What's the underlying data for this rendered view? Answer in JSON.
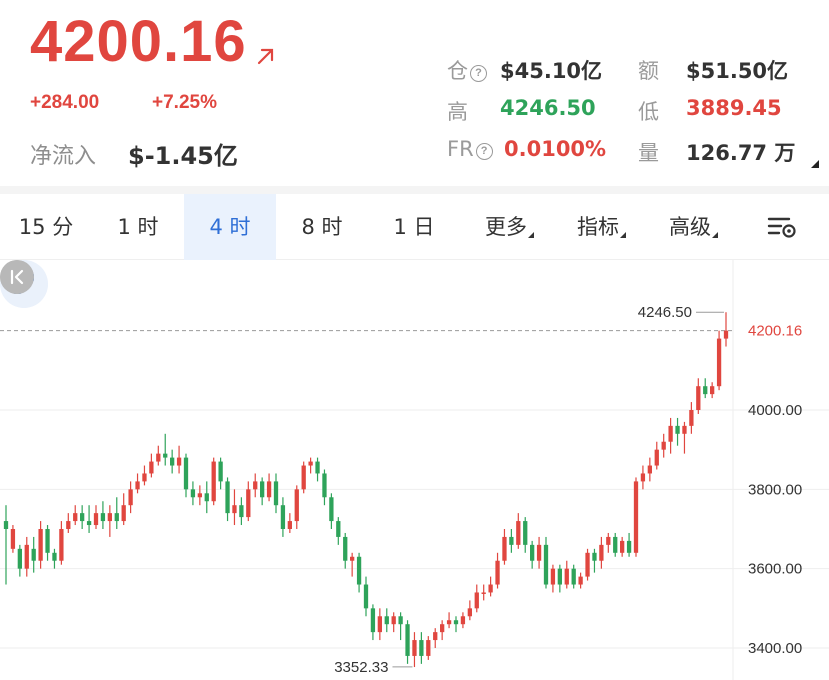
{
  "header": {
    "price": "4200.16",
    "change_abs": "+284.00",
    "change_pct": "+7.25%",
    "net_inflow_label": "净流入",
    "net_inflow_value": "$-1.45亿",
    "stats": {
      "open_interest_label": "仓",
      "open_interest_value": "$45.10亿",
      "turnover_label": "额",
      "turnover_value": "$51.50亿",
      "high_label": "高",
      "high_value": "4246.50",
      "low_label": "低",
      "low_value": "3889.45",
      "fr_label": "FR",
      "fr_value": "0.0100%",
      "volume_label": "量",
      "volume_value": "126.77 万"
    }
  },
  "tabs": {
    "items": [
      "15 分",
      "1 时",
      "4 时",
      "8 时",
      "1 日",
      "更多",
      "指标",
      "高级"
    ],
    "active": "4 时"
  },
  "colors": {
    "up": "#e0463f",
    "down": "#2ea35a",
    "accent": "#2f6fd6"
  },
  "chart_data": {
    "type": "candlestick",
    "y_ticks": [
      "4000.00",
      "3800.00",
      "3600.00",
      "3400.00"
    ],
    "y_tick_values": [
      4000,
      3800,
      3600,
      3400
    ],
    "ylim": [
      3365,
      4300
    ],
    "current_price_label": "4200.16",
    "current_price": 4200.16,
    "max_label": "4246.50",
    "max_value": 4246.5,
    "min_label": "3352.33",
    "min_value": 3352.33,
    "grid": true,
    "candles": [
      [
        3720,
        3700,
        3760,
        3560
      ],
      [
        3650,
        3700,
        3710,
        3640
      ],
      [
        3650,
        3600,
        3660,
        3580
      ],
      [
        3600,
        3660,
        3680,
        3580
      ],
      [
        3650,
        3620,
        3680,
        3590
      ],
      [
        3620,
        3700,
        3720,
        3600
      ],
      [
        3700,
        3640,
        3710,
        3620
      ],
      [
        3640,
        3620,
        3650,
        3600
      ],
      [
        3620,
        3700,
        3720,
        3610
      ],
      [
        3700,
        3720,
        3740,
        3690
      ],
      [
        3720,
        3740,
        3760,
        3710
      ],
      [
        3740,
        3720,
        3760,
        3700
      ],
      [
        3720,
        3710,
        3760,
        3690
      ],
      [
        3710,
        3740,
        3760,
        3700
      ],
      [
        3740,
        3720,
        3770,
        3700
      ],
      [
        3720,
        3740,
        3760,
        3680
      ],
      [
        3740,
        3720,
        3780,
        3700
      ],
      [
        3720,
        3760,
        3790,
        3710
      ],
      [
        3760,
        3800,
        3820,
        3740
      ],
      [
        3800,
        3820,
        3840,
        3790
      ],
      [
        3820,
        3840,
        3860,
        3810
      ],
      [
        3840,
        3870,
        3890,
        3830
      ],
      [
        3870,
        3890,
        3910,
        3860
      ],
      [
        3890,
        3880,
        3940,
        3860
      ],
      [
        3880,
        3860,
        3900,
        3840
      ],
      [
        3860,
        3880,
        3910,
        3840
      ],
      [
        3880,
        3800,
        3890,
        3780
      ],
      [
        3800,
        3780,
        3820,
        3760
      ],
      [
        3780,
        3790,
        3810,
        3760
      ],
      [
        3790,
        3770,
        3820,
        3740
      ],
      [
        3770,
        3870,
        3880,
        3760
      ],
      [
        3870,
        3820,
        3880,
        3800
      ],
      [
        3820,
        3740,
        3830,
        3720
      ],
      [
        3740,
        3760,
        3800,
        3710
      ],
      [
        3760,
        3730,
        3780,
        3710
      ],
      [
        3730,
        3800,
        3820,
        3720
      ],
      [
        3800,
        3820,
        3840,
        3780
      ],
      [
        3820,
        3780,
        3830,
        3760
      ],
      [
        3780,
        3820,
        3840,
        3770
      ],
      [
        3820,
        3760,
        3840,
        3740
      ],
      [
        3760,
        3700,
        3780,
        3680
      ],
      [
        3700,
        3720,
        3740,
        3690
      ],
      [
        3720,
        3800,
        3810,
        3700
      ],
      [
        3800,
        3860,
        3870,
        3790
      ],
      [
        3860,
        3870,
        3880,
        3840
      ],
      [
        3870,
        3840,
        3880,
        3820
      ],
      [
        3840,
        3780,
        3850,
        3760
      ],
      [
        3780,
        3720,
        3790,
        3700
      ],
      [
        3720,
        3680,
        3730,
        3660
      ],
      [
        3680,
        3620,
        3690,
        3600
      ],
      [
        3620,
        3630,
        3640,
        3580
      ],
      [
        3630,
        3560,
        3640,
        3540
      ],
      [
        3560,
        3500,
        3580,
        3480
      ],
      [
        3500,
        3440,
        3510,
        3420
      ],
      [
        3440,
        3480,
        3500,
        3420
      ],
      [
        3480,
        3460,
        3500,
        3440
      ],
      [
        3460,
        3480,
        3490,
        3440
      ],
      [
        3480,
        3460,
        3490,
        3420
      ],
      [
        3460,
        3380,
        3470,
        3360
      ],
      [
        3380,
        3420,
        3440,
        3352
      ],
      [
        3420,
        3380,
        3440,
        3360
      ],
      [
        3380,
        3420,
        3430,
        3370
      ],
      [
        3420,
        3440,
        3450,
        3400
      ],
      [
        3440,
        3460,
        3470,
        3420
      ],
      [
        3460,
        3470,
        3490,
        3450
      ],
      [
        3470,
        3460,
        3480,
        3440
      ],
      [
        3460,
        3480,
        3490,
        3450
      ],
      [
        3480,
        3500,
        3520,
        3470
      ],
      [
        3500,
        3540,
        3560,
        3490
      ],
      [
        3540,
        3540,
        3560,
        3520
      ],
      [
        3540,
        3560,
        3580,
        3530
      ],
      [
        3560,
        3620,
        3640,
        3550
      ],
      [
        3620,
        3680,
        3700,
        3610
      ],
      [
        3680,
        3660,
        3700,
        3640
      ],
      [
        3660,
        3720,
        3740,
        3650
      ],
      [
        3720,
        3660,
        3730,
        3640
      ],
      [
        3660,
        3620,
        3670,
        3600
      ],
      [
        3620,
        3660,
        3680,
        3600
      ],
      [
        3660,
        3560,
        3680,
        3550
      ],
      [
        3560,
        3600,
        3610,
        3540
      ],
      [
        3600,
        3560,
        3610,
        3540
      ],
      [
        3560,
        3600,
        3620,
        3550
      ],
      [
        3600,
        3560,
        3610,
        3550
      ],
      [
        3560,
        3580,
        3590,
        3550
      ],
      [
        3580,
        3640,
        3650,
        3570
      ],
      [
        3640,
        3620,
        3650,
        3590
      ],
      [
        3620,
        3660,
        3680,
        3600
      ],
      [
        3660,
        3680,
        3690,
        3640
      ],
      [
        3680,
        3640,
        3690,
        3630
      ],
      [
        3640,
        3670,
        3680,
        3630
      ],
      [
        3670,
        3640,
        3690,
        3630
      ],
      [
        3640,
        3820,
        3830,
        3630
      ],
      [
        3820,
        3840,
        3860,
        3800
      ],
      [
        3840,
        3860,
        3880,
        3820
      ],
      [
        3860,
        3900,
        3920,
        3850
      ],
      [
        3900,
        3920,
        3940,
        3880
      ],
      [
        3920,
        3960,
        3980,
        3890
      ],
      [
        3960,
        3940,
        3980,
        3910
      ],
      [
        3940,
        3960,
        3970,
        3890
      ],
      [
        3960,
        4000,
        4020,
        3940
      ],
      [
        4000,
        4060,
        4080,
        3990
      ],
      [
        4060,
        4040,
        4080,
        4030
      ],
      [
        4040,
        4060,
        4070,
        4030
      ],
      [
        4060,
        4180,
        4200,
        4050
      ],
      [
        4180,
        4200,
        4246.5,
        4160
      ]
    ]
  }
}
